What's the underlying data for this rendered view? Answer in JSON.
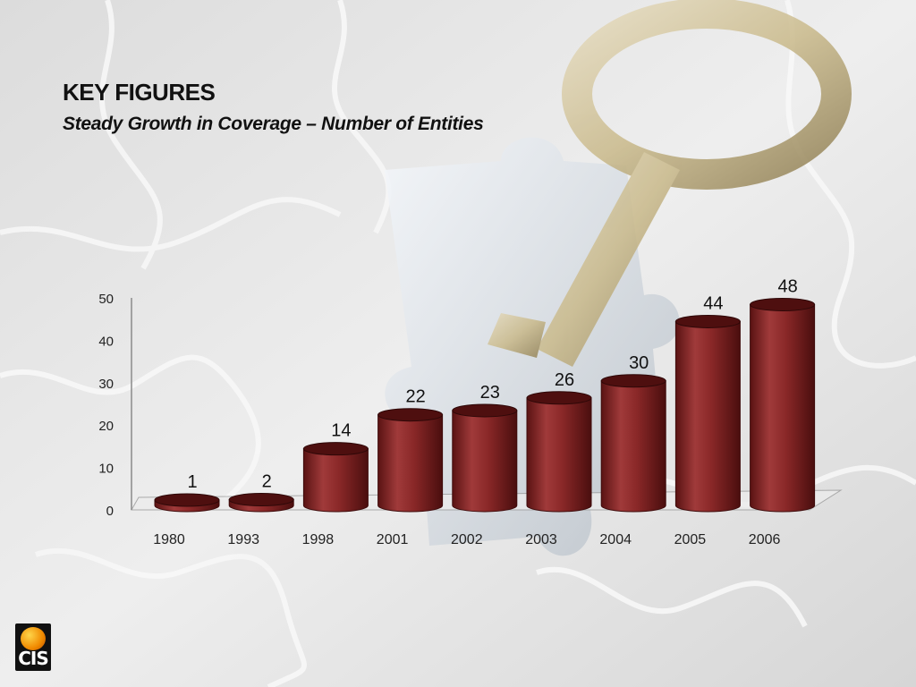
{
  "slide": {
    "title": "KEY FIGURES",
    "subtitle": "Steady Growth in Coverage – Number of Entities",
    "logo_text": "CIS"
  },
  "colors": {
    "bar": "#7a1e1e",
    "bar_dark": "#4e0f0f",
    "bar_light": "#a84040",
    "text": "#111111"
  },
  "chart_data": {
    "type": "bar",
    "style": "3d-cylinder",
    "categories": [
      "1980",
      "1993",
      "1998",
      "2001",
      "2002",
      "2003",
      "2004",
      "2005",
      "2006"
    ],
    "values": [
      1,
      2,
      14,
      22,
      23,
      26,
      30,
      44,
      48
    ],
    "data_labels": [
      "1",
      "2",
      "14",
      "22",
      "23",
      "26",
      "30",
      "44",
      "48"
    ],
    "yticks": [
      "0",
      "10",
      "20",
      "30",
      "40",
      "50"
    ],
    "ylim": [
      0,
      50
    ],
    "grid": false,
    "legend": "none"
  }
}
